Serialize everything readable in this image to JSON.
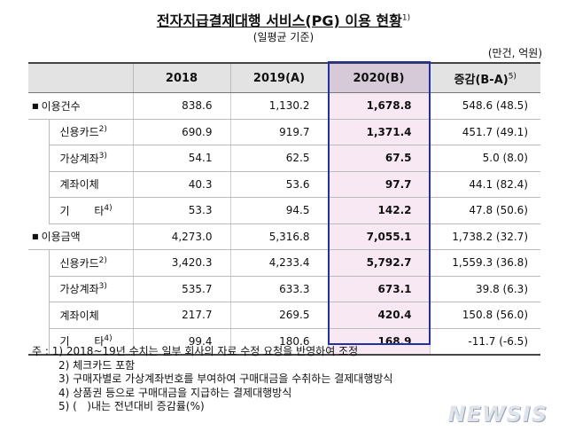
{
  "title": "전자지급결제대행 서비스(PG) 이용 현황",
  "title_note": "1)",
  "subtitle": "(일평균 기준)",
  "unit": "(만건, 억원)",
  "table": {
    "header": [
      "2018",
      "2019(A)",
      "2020(B)",
      "증감(B-A)"
    ],
    "header_note": "5)",
    "rows": [
      {
        "kind": "group",
        "label": "이용건수",
        "values": [
          "838.6",
          "1,130.2",
          "1,678.8",
          "548.6 (48.5)"
        ]
      },
      {
        "kind": "sub",
        "label": "신용카드",
        "note": "2)",
        "values": [
          "690.9",
          "919.7",
          "1,371.4",
          "451.7 (49.1)"
        ]
      },
      {
        "kind": "sub",
        "label": "가상계좌",
        "note": "3)",
        "values": [
          "54.1",
          "62.5",
          "67.5",
          "5.0 (8.0)"
        ]
      },
      {
        "kind": "sub",
        "label": "계좌이체",
        "values": [
          "40.3",
          "53.6",
          "97.7",
          "44.1 (82.4)"
        ]
      },
      {
        "kind": "sub",
        "label": "기 타",
        "note": "4)",
        "values": [
          "53.3",
          "94.5",
          "142.2",
          "47.8 (50.6)"
        ]
      },
      {
        "kind": "group",
        "label": "이용금액",
        "values": [
          "4,273.0",
          "5,316.8",
          "7,055.1",
          "1,738.2 (32.7)"
        ]
      },
      {
        "kind": "sub",
        "label": "신용카드",
        "note": "2)",
        "values": [
          "3,420.3",
          "4,233.4",
          "5,792.7",
          "1,559.3 (36.8)"
        ]
      },
      {
        "kind": "sub",
        "label": "가상계좌",
        "note": "3)",
        "values": [
          "535.7",
          "633.3",
          "673.1",
          "39.8 (6.3)"
        ]
      },
      {
        "kind": "sub",
        "label": "계좌이체",
        "values": [
          "217.7",
          "269.5",
          "420.4",
          "150.8 (56.0)"
        ]
      },
      {
        "kind": "sub",
        "label": "기 타",
        "note": "4)",
        "values": [
          "99.4",
          "180.6",
          "168.9",
          "-11.7 (-6.5)"
        ]
      }
    ]
  },
  "notes_prefix": "주 :",
  "notes": [
    "1) 2018~19년 수치는 일부 회사의 자료 수정 요청을 반영하여 조정",
    "2) 체크카드 포함",
    "3) 구매자별로 가상계좌번호를 부여하여 구매대금을 수취하는 결제대행방식",
    "4) 상품권 등으로 구매대금을 지급하는 결제대행방식",
    "5) (   )내는 전년대비 증감률(%)"
  ],
  "watermark": "NEWSIS"
}
